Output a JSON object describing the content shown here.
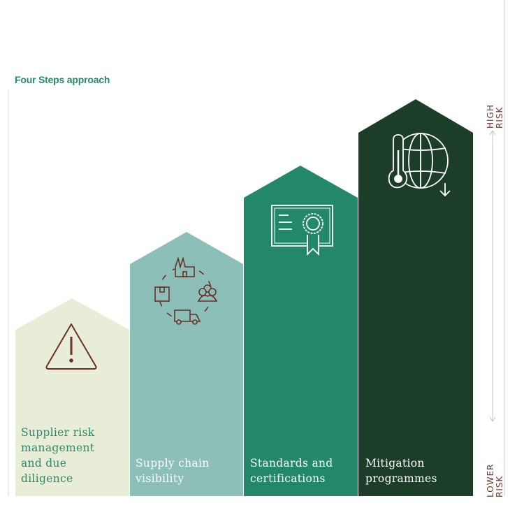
{
  "title": "Four Steps approach",
  "steps": [
    {
      "label_lines": [
        "Supplier risk",
        "management",
        "and due",
        "diligence"
      ],
      "icon": "warning-triangle-icon",
      "color": "#e8edd8",
      "text_color": "#2a8a6a"
    },
    {
      "label_lines": [
        "Supply chain",
        "visibility"
      ],
      "icon": "supply-chain-cycle-icon",
      "color": "#8bbfb8",
      "text_color": "#ffffff"
    },
    {
      "label_lines": [
        "Standards and",
        "certifications"
      ],
      "icon": "certificate-icon",
      "color": "#23876a",
      "text_color": "#ffffff"
    },
    {
      "label_lines": [
        "Mitigation",
        "programmes"
      ],
      "icon": "climate-globe-thermometer-icon",
      "color": "#1c3d28",
      "text_color": "#ffffff"
    }
  ],
  "risk_axis": {
    "top_line1": "HIGH",
    "top_line2": "RISK",
    "bottom_line1": "LOWER",
    "bottom_line2": "RISK"
  },
  "colors": {
    "icon_dark": "#6b2f26",
    "axis": "#c8c0c0"
  }
}
